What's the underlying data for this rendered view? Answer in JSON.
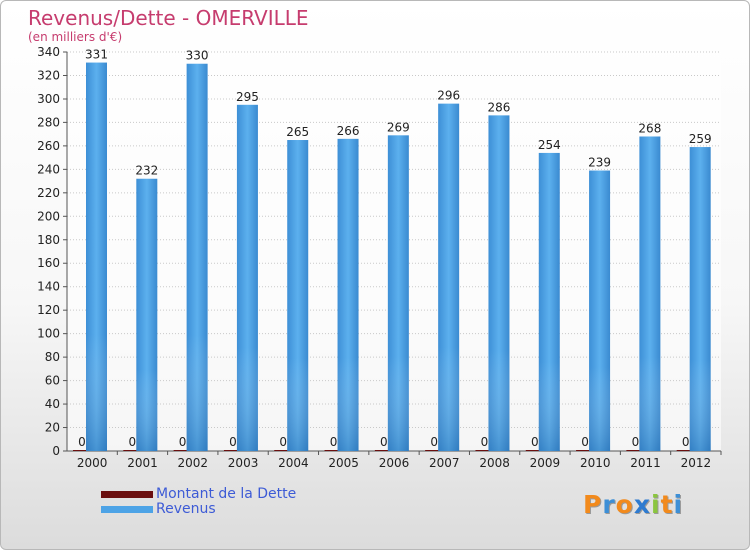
{
  "chart_data": {
    "type": "bar",
    "title": "Revenus/Dette - OMERVILLE",
    "subtitle": "(en milliers d'€)",
    "categories": [
      "2000",
      "2001",
      "2002",
      "2003",
      "2004",
      "2005",
      "2006",
      "2007",
      "2008",
      "2009",
      "2010",
      "2011",
      "2012"
    ],
    "series": [
      {
        "name": "Montant de la Dette",
        "color": "#6b0f0f",
        "values": [
          0,
          0,
          0,
          0,
          0,
          0,
          0,
          0,
          0,
          0,
          0,
          0,
          0
        ]
      },
      {
        "name": "Revenus",
        "color": "#4da3e6",
        "values": [
          331,
          232,
          330,
          295,
          265,
          266,
          269,
          296,
          286,
          254,
          239,
          268,
          259
        ]
      }
    ],
    "ylim": [
      0,
      340
    ],
    "yticks": [
      0,
      20,
      40,
      60,
      80,
      100,
      120,
      140,
      160,
      180,
      200,
      220,
      240,
      260,
      280,
      300,
      320,
      340
    ],
    "grid": true,
    "legend_position": "bottom-left"
  },
  "logo": {
    "letters": [
      "P",
      "r",
      "o",
      "x",
      "i",
      "t",
      "i"
    ],
    "colors": [
      "#f28a1c",
      "#3d8fd6",
      "#f28a1c",
      "#2e7bd0",
      "#8bc53f",
      "#f28a1c",
      "#3d8fd6"
    ]
  }
}
